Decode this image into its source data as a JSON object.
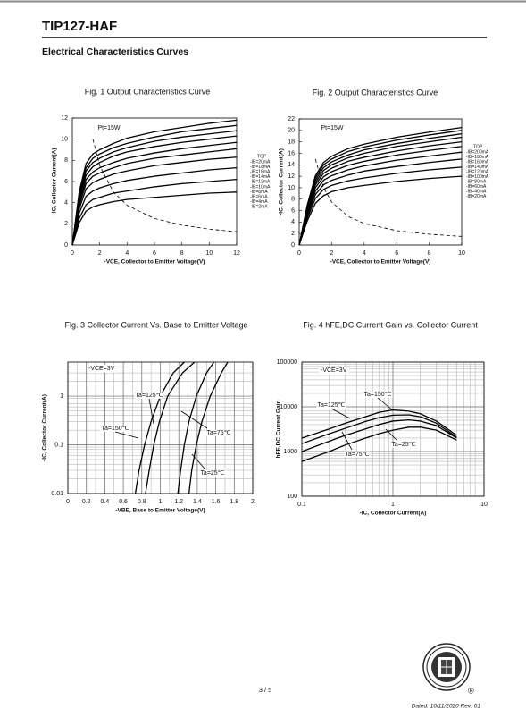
{
  "header": {
    "title": "TIP127-HAF",
    "section": "Electrical Characteristics Curves"
  },
  "chart_data": [
    {
      "type": "line",
      "title": "Fig. 1 Output Characteristics Curve",
      "xlabel": "-VCE, Collector to Emitter Voltage(V)",
      "ylabel": "-IC, Collector Current(A)",
      "x": [
        0,
        0.5,
        1,
        1.5,
        2,
        3,
        4,
        6,
        8,
        10,
        12
      ],
      "xlim": [
        0,
        12
      ],
      "xticks": [
        0,
        2,
        4,
        6,
        8,
        10,
        12
      ],
      "ylim": [
        0,
        12
      ],
      "yticks": [
        0,
        2,
        4,
        6,
        8,
        10,
        12
      ],
      "grid": false,
      "legend_title": "TOP",
      "annotations": [
        "Pt=15W"
      ],
      "series": [
        {
          "name": "-IB=20mA",
          "color": "#000000",
          "values": [
            0,
            5.0,
            7.7,
            8.6,
            9.0,
            9.6,
            10.1,
            10.7,
            11.1,
            11.5,
            11.8
          ]
        },
        {
          "name": "-IB=18mA",
          "color": "#000000",
          "values": [
            0,
            4.7,
            7.3,
            8.2,
            8.6,
            9.2,
            9.6,
            10.2,
            10.7,
            11.0,
            11.3
          ]
        },
        {
          "name": "-IB=16mA",
          "color": "#000000",
          "values": [
            0,
            4.5,
            7.0,
            7.8,
            8.2,
            8.8,
            9.2,
            9.8,
            10.2,
            10.5,
            10.8
          ]
        },
        {
          "name": "-IB=14mA",
          "color": "#000000",
          "values": [
            0,
            4.3,
            6.6,
            7.4,
            7.8,
            8.4,
            8.8,
            9.3,
            9.7,
            10.0,
            10.3
          ]
        },
        {
          "name": "-IB=12mA",
          "color": "#000000",
          "values": [
            0,
            4.0,
            6.2,
            6.9,
            7.3,
            7.8,
            8.2,
            8.7,
            9.1,
            9.4,
            9.7
          ]
        },
        {
          "name": "-IB=10mA",
          "color": "#000000",
          "values": [
            0,
            3.7,
            5.8,
            6.5,
            6.8,
            7.3,
            7.7,
            8.2,
            8.5,
            8.8,
            9.1
          ]
        },
        {
          "name": "-IB=8mA",
          "color": "#000000",
          "values": [
            0,
            3.4,
            5.3,
            5.9,
            6.2,
            6.7,
            7.0,
            7.5,
            7.8,
            8.1,
            8.3
          ]
        },
        {
          "name": "-IB=6mA",
          "color": "#000000",
          "values": [
            0,
            3.0,
            4.6,
            5.1,
            5.4,
            5.8,
            6.1,
            6.5,
            6.8,
            7.1,
            7.3
          ]
        },
        {
          "name": "-IB=4mA",
          "color": "#000000",
          "values": [
            0,
            2.5,
            3.8,
            4.3,
            4.5,
            4.9,
            5.1,
            5.5,
            5.8,
            6.0,
            6.2
          ]
        },
        {
          "name": "-IB=2mA",
          "color": "#000000",
          "values": [
            0,
            2.1,
            3.2,
            3.6,
            3.8,
            4.1,
            4.3,
            4.5,
            4.7,
            4.9,
            5.0
          ]
        },
        {
          "color": "#000000",
          "dashed": true,
          "values": [
            null,
            null,
            null,
            10,
            7.5,
            5,
            3.75,
            2.5,
            1.88,
            1.5,
            1.25
          ]
        }
      ]
    },
    {
      "type": "line",
      "title": "Fig. 2 Output Characteristics Curve",
      "xlabel": "-VCE, Collector to Emitter Voltage(V)",
      "ylabel": "-IC, Collector Current(A)",
      "x": [
        0,
        0.5,
        1,
        1.5,
        2,
        3,
        4,
        6,
        8,
        10
      ],
      "xlim": [
        0,
        10
      ],
      "xticks": [
        0,
        2,
        4,
        6,
        8,
        10
      ],
      "ylim": [
        0,
        22
      ],
      "yticks": [
        0,
        2,
        4,
        6,
        8,
        10,
        12,
        14,
        16,
        18,
        20,
        22
      ],
      "grid": false,
      "legend_title": "TOP",
      "annotations": [
        "Pt=15W"
      ],
      "series": [
        {
          "name": "-IB=200mA",
          "color": "#000000",
          "values": [
            0,
            7.0,
            12.1,
            14.4,
            15.5,
            16.8,
            17.6,
            18.8,
            19.7,
            20.5
          ]
        },
        {
          "name": "-IB=180mA",
          "color": "#000000",
          "values": [
            0,
            6.8,
            11.7,
            14.0,
            15.0,
            16.3,
            17.1,
            18.3,
            19.2,
            20.0
          ]
        },
        {
          "name": "-IB=160mA",
          "color": "#000000",
          "values": [
            0,
            6.5,
            11.3,
            13.5,
            14.5,
            15.7,
            16.6,
            17.7,
            18.6,
            19.4
          ]
        },
        {
          "name": "-IB=140mA",
          "color": "#000000",
          "values": [
            0,
            6.3,
            10.9,
            13.0,
            14.0,
            15.2,
            16.0,
            17.2,
            18.0,
            18.8
          ]
        },
        {
          "name": "-IB=120mA",
          "color": "#000000",
          "values": [
            0,
            6.0,
            10.5,
            12.5,
            13.4,
            14.6,
            15.3,
            16.4,
            17.3,
            18.0
          ]
        },
        {
          "name": "-IB=100mA",
          "color": "#000000",
          "values": [
            0,
            5.8,
            10.0,
            11.9,
            12.8,
            13.9,
            14.6,
            15.7,
            16.5,
            17.2
          ]
        },
        {
          "name": "-IB=80mA",
          "color": "#000000",
          "values": [
            0,
            5.4,
            9.4,
            11.3,
            12.1,
            13.1,
            13.8,
            14.8,
            15.5,
            16.2
          ]
        },
        {
          "name": "-IB=60mA",
          "color": "#000000",
          "values": [
            0,
            5.1,
            8.8,
            10.5,
            11.3,
            12.2,
            12.9,
            13.7,
            14.4,
            15.0
          ]
        },
        {
          "name": "-IB=40mA",
          "color": "#000000",
          "values": [
            0,
            4.7,
            8.1,
            9.7,
            10.4,
            11.2,
            11.7,
            12.5,
            13.1,
            13.6
          ]
        },
        {
          "name": "-IB=20mA",
          "color": "#000000",
          "values": [
            0,
            4.2,
            7.3,
            8.6,
            9.3,
            10.0,
            10.4,
            11.1,
            11.6,
            12.0
          ]
        },
        {
          "color": "#000000",
          "dashed": true,
          "values": [
            null,
            null,
            15,
            10,
            7.5,
            5,
            3.75,
            2.5,
            1.88,
            1.5
          ]
        }
      ]
    },
    {
      "type": "line",
      "title": "Fig. 3 Collector Current Vs. Base to Emitter Voltage",
      "xlabel": "-VBE, Base to Emitter Voltage(V)",
      "ylabel": "-IC, Collector Current(A)",
      "xlim": [
        0,
        2
      ],
      "xticks": [
        0,
        0.2,
        0.4,
        0.6,
        0.8,
        1,
        1.2,
        1.4,
        1.6,
        1.8,
        2
      ],
      "ylim": [
        0.01,
        5
      ],
      "yticks": [
        0.01,
        0.1,
        1
      ],
      "log_y": true,
      "grid": true,
      "minor_grid": true,
      "annotations": [
        "-VCE=3V",
        "Ta=125℃",
        "Ta=150℃",
        "Ta=75℃",
        "Ta=25℃"
      ],
      "series": [
        {
          "color": "#000000",
          "x": [
            0.73,
            0.77,
            0.83,
            0.9,
            1.0,
            1.14,
            1.26
          ],
          "values": [
            0.01,
            0.03,
            0.1,
            0.3,
            1,
            3,
            5
          ]
        },
        {
          "color": "#000000",
          "x": [
            0.84,
            0.88,
            0.93,
            0.99,
            1.08,
            1.24,
            1.37
          ],
          "values": [
            0.01,
            0.03,
            0.1,
            0.3,
            1,
            3,
            5
          ]
        },
        {
          "color": "#000000",
          "x": [
            1.19,
            1.22,
            1.26,
            1.31,
            1.39,
            1.5,
            1.58
          ],
          "values": [
            0.01,
            0.03,
            0.1,
            0.3,
            1,
            3,
            5
          ]
        },
        {
          "color": "#000000",
          "x": [
            1.31,
            1.34,
            1.39,
            1.45,
            1.54,
            1.66,
            1.73
          ],
          "values": [
            0.01,
            0.03,
            0.1,
            0.3,
            1,
            3,
            5
          ]
        }
      ]
    },
    {
      "type": "line",
      "title": "Fig. 4 hFE,DC Current Gain vs. Collector Current",
      "xlabel": "-IC, Collector Current(A)",
      "ylabel": "hFE,DC Current Gain",
      "x": [
        0.1,
        0.2,
        0.3,
        0.5,
        0.7,
        1,
        1.5,
        2,
        3,
        5
      ],
      "xlim": [
        0.1,
        10
      ],
      "xticks": [
        0.1,
        1,
        10
      ],
      "log_x": true,
      "ylim": [
        100,
        100000
      ],
      "yticks": [
        100,
        1000,
        10000,
        100000
      ],
      "log_y": true,
      "grid": true,
      "minor_grid": true,
      "annotations": [
        "-VCE=3V",
        "Ta=150℃",
        "Ta=125℃",
        "Ta=75℃",
        "Ta=25℃"
      ],
      "series": [
        {
          "color": "#000000",
          "values": [
            2000,
            3200,
            4300,
            6000,
            7500,
            8500,
            8000,
            7000,
            4800,
            2300
          ]
        },
        {
          "color": "#000000",
          "values": [
            1500,
            2500,
            3300,
            4700,
            5700,
            6500,
            6600,
            6000,
            4300,
            2100
          ]
        },
        {
          "color": "#000000",
          "values": [
            1000,
            1700,
            2300,
            3200,
            4000,
            4800,
            5100,
            4800,
            3800,
            2000
          ]
        },
        {
          "color": "#000000",
          "values": [
            600,
            1000,
            1400,
            2000,
            2500,
            3000,
            3500,
            3500,
            3000,
            1800
          ]
        }
      ]
    }
  ],
  "footer": {
    "page": "3 / 5",
    "dated": "Dated:  10/11/2020  Rev:  01",
    "registered": "®"
  }
}
